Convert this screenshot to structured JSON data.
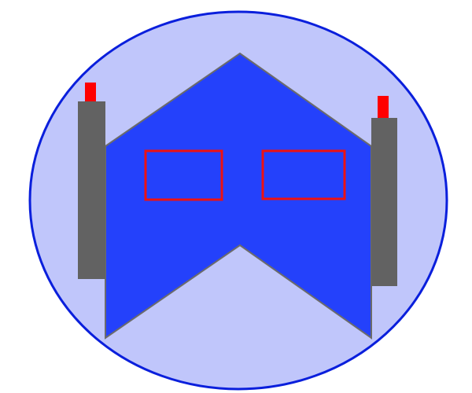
{
  "colors": {
    "background": "#ffffff",
    "ellipse_fill": "#c0c6fb",
    "ellipse_stroke": "#0a1fdc",
    "body_fill": "#2441fb",
    "body_stroke": "#6b6b6b",
    "side_bar_fill": "#626262",
    "window_stroke": "#ee1111",
    "indicator_fill": "#ff0000"
  },
  "icons": {
    "figure": "geometric-mask-icon"
  }
}
